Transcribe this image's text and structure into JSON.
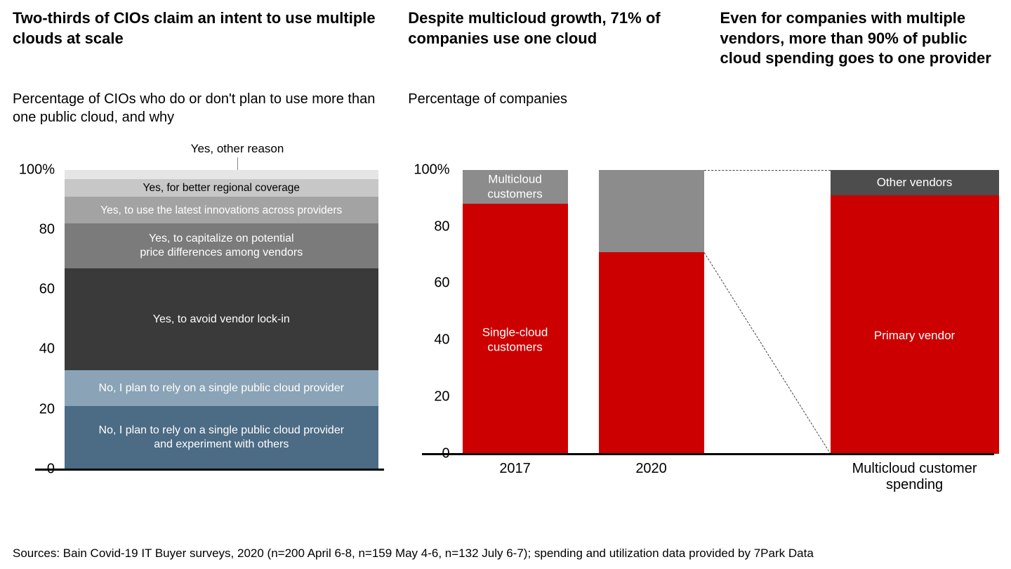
{
  "panel1": {
    "title": "Two-thirds of CIOs claim an intent to use multiple clouds at scale",
    "subtitle": "Percentage of CIOs who do or don't plan to use more than one public cloud, and why",
    "type": "stacked-bar",
    "ylim": [
      0,
      100
    ],
    "ytick_step": 20,
    "yticks": [
      "0",
      "20",
      "40",
      "60",
      "80",
      "100%"
    ],
    "tick_fontsize": 20,
    "segments": [
      {
        "label": "No, I plan to rely on a single public cloud provider and experiment with others",
        "value": 21,
        "color": "#4c6b84",
        "text": "#fff"
      },
      {
        "label": "No, I plan to rely on a single public cloud provider",
        "value": 12,
        "color": "#8aa3b6",
        "text": "#fff"
      },
      {
        "label": "Yes, to avoid vendor lock-in",
        "value": 34,
        "color": "#3a3a3a",
        "text": "#fff"
      },
      {
        "label": "Yes, to capitalize on potential price differences among vendors",
        "value": 15,
        "color": "#7b7b7b",
        "text": "#fff"
      },
      {
        "label": "Yes, to use the latest innovations across providers",
        "value": 9,
        "color": "#a3a3a3",
        "text": "#fff"
      },
      {
        "label": "Yes, for better regional coverage",
        "value": 6,
        "color": "#c7c7c7",
        "text": "#000"
      },
      {
        "label": "Yes, other reason",
        "value": 3,
        "color": "#e5e5e5",
        "text": "#000",
        "callout": true
      }
    ]
  },
  "panel2": {
    "title": "Despite multicloud growth, 71% of companies use one cloud",
    "subtitle": "Percentage of companies",
    "type": "stacked-bar-grouped",
    "ylim": [
      0,
      100
    ],
    "ytick_step": 20,
    "yticks": [
      "0",
      "20",
      "40",
      "60",
      "80",
      "100%"
    ],
    "bars": [
      {
        "category": "2017",
        "bottom_value": 88,
        "bottom_label": "Single-cloud customers",
        "top_value": 12,
        "top_label": "Multicloud customers",
        "bottom_color": "#cc0000",
        "top_color": "#8c8c8c"
      },
      {
        "category": "2020",
        "bottom_value": 71,
        "bottom_label": "",
        "top_value": 29,
        "top_label": "",
        "bottom_color": "#cc0000",
        "top_color": "#8c8c8c"
      }
    ]
  },
  "panel3": {
    "title": "Even for companies with multiple vendors, more than 90% of public cloud spending goes to one provider",
    "type": "stacked-bar",
    "bars": [
      {
        "category": "Multicloud customer spending",
        "bottom_value": 91,
        "bottom_label": "Primary vendor",
        "top_value": 9,
        "top_label": "Other vendors",
        "bottom_color": "#cc0000",
        "top_color": "#4d4d4d"
      }
    ]
  },
  "colors": {
    "red": "#cc0000",
    "grey_mid": "#8c8c8c",
    "grey_dark": "#4d4d4d",
    "axis": "#000000",
    "background": "#ffffff"
  },
  "typography": {
    "title_fontsize": 22,
    "title_weight": 700,
    "subtitle_fontsize": 20,
    "tick_fontsize": 20,
    "segment_label_fontsize": 16,
    "source_fontsize": 17
  },
  "source": "Sources: Bain Covid-19 IT Buyer surveys, 2020 (n=200 April 6-8, n=159 May 4-6, n=132 July 6-7); spending and utilization data provided by 7Park Data"
}
